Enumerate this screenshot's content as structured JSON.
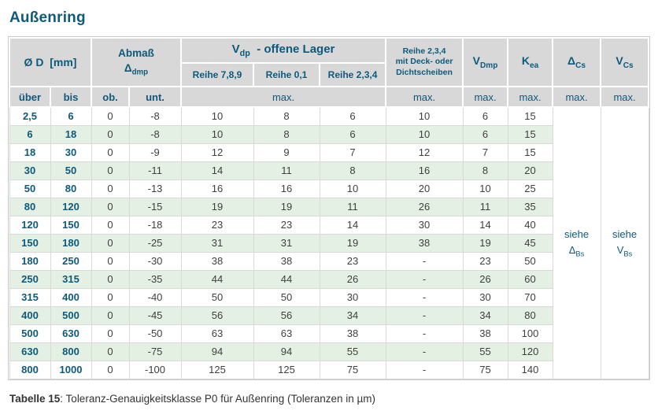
{
  "page": {
    "title": "Außenring",
    "caption": {
      "label": "Tabelle 15",
      "text": ": Toleranz-Genauigkeitsklasse P0 für Außenring (Toleranzen in µm)"
    }
  },
  "table": {
    "header": {
      "diameter": {
        "symbol": "Ø D",
        "unit": "[mm]"
      },
      "abmass": {
        "title": "Abmaß",
        "symbol": "Δ",
        "sub": "dmp"
      },
      "vdp": {
        "base": "V",
        "sub": "dp",
        "suffix": "-  offene Lager"
      },
      "vdp_columns": [
        "Reihe 7,8,9",
        "Reihe 0,1",
        "Reihe 2,3,4"
      ],
      "deck": {
        "line1": "Reihe 2,3,4",
        "line2": "mit Deck- oder",
        "line3": "Dichtscheiben"
      },
      "vdmp": {
        "base": "V",
        "sub": "Dmp"
      },
      "kea": {
        "base": "K",
        "sub": "ea"
      },
      "delta_cs": {
        "base": "Δ",
        "sub": "Cs"
      },
      "v_cs": {
        "base": "V",
        "sub": "Cs"
      },
      "row3": {
        "uber": "über",
        "bis": "bis",
        "ob": "ob.",
        "unt": "unt.",
        "max": "max."
      }
    },
    "column_keys": [
      "uber",
      "bis",
      "ob",
      "unt",
      "reihe789",
      "reihe01",
      "reihe234",
      "deck",
      "vdmp",
      "kea"
    ],
    "rows": [
      [
        "2,5",
        "6",
        "0",
        "-8",
        "10",
        "8",
        "6",
        "10",
        "6",
        "15"
      ],
      [
        "6",
        "18",
        "0",
        "-8",
        "10",
        "8",
        "6",
        "10",
        "6",
        "15"
      ],
      [
        "18",
        "30",
        "0",
        "-9",
        "12",
        "9",
        "7",
        "12",
        "7",
        "15"
      ],
      [
        "30",
        "50",
        "0",
        "-11",
        "14",
        "11",
        "8",
        "16",
        "8",
        "20"
      ],
      [
        "50",
        "80",
        "0",
        "-13",
        "16",
        "16",
        "10",
        "20",
        "10",
        "25"
      ],
      [
        "80",
        "120",
        "0",
        "-15",
        "19",
        "19",
        "11",
        "26",
        "11",
        "35"
      ],
      [
        "120",
        "150",
        "0",
        "-18",
        "23",
        "23",
        "14",
        "30",
        "14",
        "40"
      ],
      [
        "150",
        "180",
        "0",
        "-25",
        "31",
        "31",
        "19",
        "38",
        "19",
        "45"
      ],
      [
        "180",
        "250",
        "0",
        "-30",
        "38",
        "38",
        "23",
        "-",
        "23",
        "50"
      ],
      [
        "250",
        "315",
        "0",
        "-35",
        "44",
        "44",
        "26",
        "-",
        "26",
        "60"
      ],
      [
        "315",
        "400",
        "0",
        "-40",
        "50",
        "50",
        "30",
        "-",
        "30",
        "70"
      ],
      [
        "400",
        "500",
        "0",
        "-45",
        "56",
        "56",
        "34",
        "-",
        "34",
        "80"
      ],
      [
        "500",
        "630",
        "0",
        "-50",
        "63",
        "63",
        "38",
        "-",
        "38",
        "100"
      ],
      [
        "630",
        "800",
        "0",
        "-75",
        "94",
        "94",
        "55",
        "-",
        "55",
        "120"
      ],
      [
        "800",
        "1000",
        "0",
        "-100",
        "125",
        "125",
        "75",
        "-",
        "75",
        "140"
      ]
    ],
    "notes": {
      "delta_cs": {
        "pre": "siehe",
        "base": "Δ",
        "sub": "Bs"
      },
      "v_cs": {
        "pre": "siehe",
        "base": "V",
        "sub": "Bs"
      }
    },
    "colors": {
      "accent_blue": "#0d5a7d",
      "header_bg": "#d8d8d8",
      "stripe_green": "#e4f0e4"
    }
  }
}
